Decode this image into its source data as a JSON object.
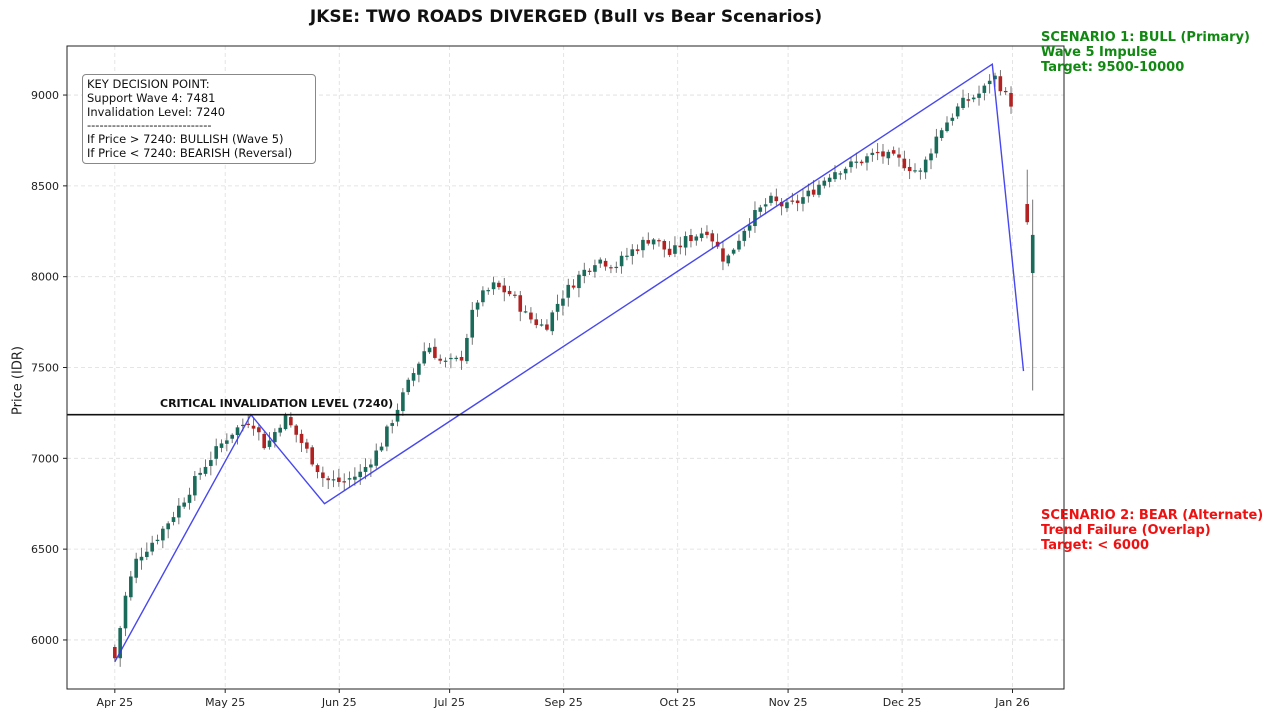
{
  "chart_data": {
    "type": "candlestick",
    "title": "JKSE: TWO ROADS DIVERGED (Bull vs Bear Scenarios)",
    "xlabel": "",
    "ylabel": "Price (IDR)",
    "ylim": [
      5730,
      9270
    ],
    "y_ticks": [
      6000,
      6500,
      7000,
      7500,
      8000,
      8500,
      9000
    ],
    "x_ticks": [
      {
        "label": "Apr 25",
        "day": 0
      },
      {
        "label": "May 25",
        "day": 30
      },
      {
        "label": "Jun 25",
        "day": 61
      },
      {
        "label": "Jul 25",
        "day": 91
      },
      {
        "label": "Sep 25",
        "day": 122
      },
      {
        "label": "Oct 25",
        "day": 153
      },
      {
        "label": "Nov 25",
        "day": 183
      },
      {
        "label": "Dec 25",
        "day": 214
      },
      {
        "label": "Jan 26",
        "day": 244
      }
    ],
    "x_range_days": [
      -13,
      258
    ],
    "grid": true,
    "up_color": "#1a6b5a",
    "down_color": "#b22222",
    "wave_color": "#3333ee",
    "price_anchors": [
      [
        0,
        5900
      ],
      [
        3,
        6250
      ],
      [
        6,
        6450
      ],
      [
        12,
        6580
      ],
      [
        18,
        6750
      ],
      [
        24,
        6950
      ],
      [
        31,
        7130
      ],
      [
        37,
        7220
      ],
      [
        41,
        7060
      ],
      [
        46,
        7230
      ],
      [
        51,
        7080
      ],
      [
        57,
        6880
      ],
      [
        62,
        6870
      ],
      [
        67,
        6920
      ],
      [
        72,
        7060
      ],
      [
        76,
        7240
      ],
      [
        80,
        7420
      ],
      [
        85,
        7630
      ],
      [
        89,
        7520
      ],
      [
        94,
        7540
      ],
      [
        98,
        7860
      ],
      [
        103,
        7950
      ],
      [
        108,
        7900
      ],
      [
        112,
        7780
      ],
      [
        117,
        7720
      ],
      [
        121,
        7880
      ],
      [
        126,
        8000
      ],
      [
        131,
        8100
      ],
      [
        136,
        8060
      ],
      [
        141,
        8150
      ],
      [
        146,
        8220
      ],
      [
        151,
        8120
      ],
      [
        155,
        8200
      ],
      [
        161,
        8260
      ],
      [
        166,
        8080
      ],
      [
        172,
        8300
      ],
      [
        178,
        8420
      ],
      [
        183,
        8380
      ],
      [
        189,
        8460
      ],
      [
        195,
        8580
      ],
      [
        201,
        8620
      ],
      [
        207,
        8680
      ],
      [
        213,
        8640
      ],
      [
        219,
        8570
      ],
      [
        224,
        8800
      ],
      [
        230,
        8950
      ],
      [
        236,
        9020
      ],
      [
        238.5,
        9120
      ],
      [
        241,
        9040
      ],
      [
        242.5,
        8980
      ],
      [
        244,
        8950
      ],
      [
        248,
        8350
      ],
      [
        249.5,
        8030
      ]
    ],
    "wave_path": [
      [
        0,
        5880
      ],
      [
        37,
        7240
      ],
      [
        57,
        6750
      ],
      [
        238.5,
        9170
      ],
      [
        247,
        7480
      ]
    ],
    "critical_level": 7240,
    "critical_label": "CRITICAL INVALIDATION LEVEL (7240)",
    "info_box": [
      "KEY DECISION POINT:",
      "Support Wave 4: 7481",
      "Invalidation Level: 7240",
      "------------------------------",
      "If Price > 7240: BULLISH (Wave 5)",
      "If Price < 7240: BEARISH (Reversal)"
    ],
    "scenario_bull": [
      "SCENARIO 1: BULL (Primary)",
      "Wave 5 Impulse",
      "Target: 9500-10000"
    ],
    "scenario_bear": [
      "SCENARIO 2: BEAR (Alternate)",
      "Trend Failure (Overlap)",
      "Target: < 6000"
    ]
  }
}
